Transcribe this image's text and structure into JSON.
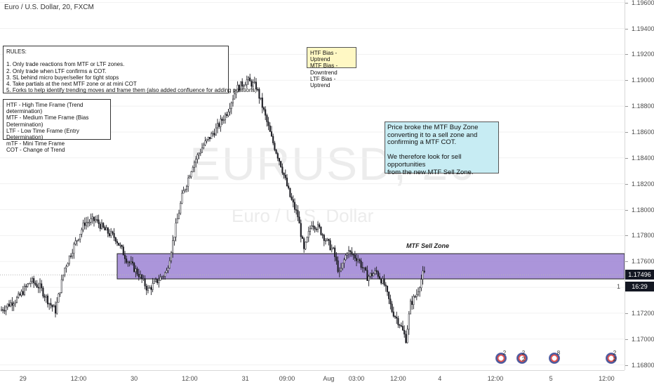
{
  "header": {
    "symbol_title": "Euro / U.S. Dollar, 20, FXCM"
  },
  "watermark": {
    "symbol": "EURUSD, 20",
    "description": "Euro / U.S. Dollar"
  },
  "rules_box": {
    "lines": [
      "RULES:",
      "",
      "1. Only trade reactions from MTF or LTF zones.",
      "2. Only trade when LTF confirms a COT.",
      "3. SL behind micro buyer/seller for tight stops",
      "4. Take partials at the next MTF zone or at mini COT",
      "5. Forks to help identify trending moves and frame them (also added confluence for adding positions)"
    ]
  },
  "legend_box": {
    "lines": [
      "HTF - High Time Frame (Trend determination)",
      "MTF - Medium Time Frame (Bias Determination)",
      "LTF - Low Time Frame (Entry Determination)",
      "mTF - Mini Time Frame",
      "COT - Change of Trend"
    ]
  },
  "bias_box": {
    "lines": [
      "HTF Bias - Uptrend",
      "MTF Bias - Downtrend",
      "LTF Bias - Uptrend"
    ]
  },
  "info_box": {
    "lines": [
      "Price broke the MTF Buy Zone",
      "converting it to a sell zone and",
      "confirming a MTF COT.",
      "",
      "We therefore look for sell opportunities",
      "from the new MTF Sell Zone."
    ]
  },
  "zone": {
    "label": "MTF Sell Zone",
    "low": 1.17465,
    "high": 1.1766,
    "start_bar": 75,
    "color": "#9c82d4"
  },
  "price_tags": {
    "last_price": "1.17496",
    "countdown": "16:29",
    "extra": "1"
  },
  "events": [
    {
      "count": "2"
    },
    {
      "count": "2 2"
    },
    {
      "count": "8"
    },
    {
      "count": "2 2"
    }
  ],
  "colors": {
    "up": "#26a69a",
    "down": "#26262b",
    "candle": "#1f1f25",
    "zone": "#9c82d4",
    "tag": "#131722"
  },
  "chart_data": {
    "type": "candlestick",
    "title": "Euro / U.S. Dollar, 20, FXCM",
    "timeframe_minutes": 20,
    "ylim": [
      1.1676,
      1.1962
    ],
    "yticks": [
      1.168,
      1.17,
      1.172,
      1.174,
      1.176,
      1.178,
      1.18,
      1.182,
      1.184,
      1.186,
      1.188,
      1.19,
      1.192,
      1.194,
      1.196
    ],
    "ytick_labels": [
      "1.16800",
      "1.17000",
      "1.17200",
      "1.17400",
      "1.17600",
      "1.17800",
      "1.18000",
      "1.18200",
      "1.18400",
      "1.18600",
      "1.18800",
      "1.19000",
      "1.19200",
      "1.19400",
      "1.19600"
    ],
    "xticks": [
      {
        "label": "29",
        "bar": 14
      },
      {
        "label": "12:00",
        "bar": 50
      },
      {
        "label": "30",
        "bar": 86
      },
      {
        "label": "12:00",
        "bar": 122
      },
      {
        "label": "31",
        "bar": 158
      },
      {
        "label": "09:00",
        "bar": 185
      },
      {
        "label": "Aug",
        "bar": 212
      },
      {
        "label": "03:00",
        "bar": 230
      },
      {
        "label": "12:00",
        "bar": 257
      },
      {
        "label": "4",
        "bar": 284
      },
      {
        "label": "12:00",
        "bar": 320
      },
      {
        "label": "5",
        "bar": 356
      },
      {
        "label": "12:00",
        "bar": 392
      }
    ],
    "path_keypoints": [
      [
        0,
        1.1722
      ],
      [
        12,
        1.1732
      ],
      [
        20,
        1.1745
      ],
      [
        26,
        1.174
      ],
      [
        32,
        1.1728
      ],
      [
        36,
        1.1722
      ],
      [
        42,
        1.1755
      ],
      [
        48,
        1.1772
      ],
      [
        55,
        1.179
      ],
      [
        62,
        1.1792
      ],
      [
        68,
        1.1784
      ],
      [
        75,
        1.1778
      ],
      [
        82,
        1.1762
      ],
      [
        90,
        1.175
      ],
      [
        96,
        1.1738
      ],
      [
        102,
        1.1745
      ],
      [
        108,
        1.1752
      ],
      [
        112,
        1.1775
      ],
      [
        118,
        1.181
      ],
      [
        125,
        1.1835
      ],
      [
        132,
        1.185
      ],
      [
        140,
        1.1862
      ],
      [
        147,
        1.1875
      ],
      [
        153,
        1.1893
      ],
      [
        160,
        1.19
      ],
      [
        166,
        1.1895
      ],
      [
        170,
        1.188
      ],
      [
        176,
        1.1855
      ],
      [
        182,
        1.1835
      ],
      [
        188,
        1.181
      ],
      [
        193,
        1.1795
      ],
      [
        197,
        1.1768
      ],
      [
        202,
        1.179
      ],
      [
        207,
        1.1785
      ],
      [
        212,
        1.1775
      ],
      [
        216,
        1.1768
      ],
      [
        220,
        1.175
      ],
      [
        225,
        1.1768
      ],
      [
        232,
        1.1762
      ],
      [
        238,
        1.1748
      ],
      [
        244,
        1.1752
      ],
      [
        249,
        1.1742
      ],
      [
        254,
        1.1722
      ],
      [
        259,
        1.1712
      ],
      [
        263,
        1.17
      ],
      [
        266,
        1.1727
      ],
      [
        270,
        1.1735
      ],
      [
        274,
        1.175
      ]
    ],
    "last_price": 1.17496
  }
}
